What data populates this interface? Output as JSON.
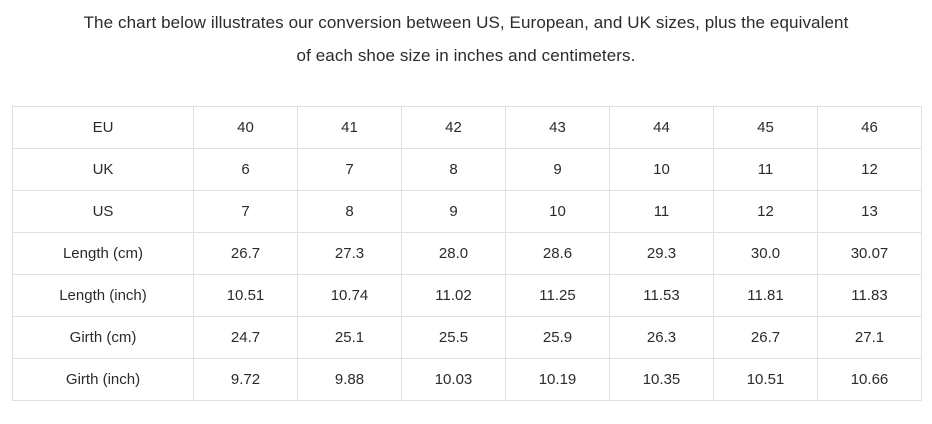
{
  "title": {
    "text": "The chart below illustrates our conversion between US, European, and UK sizes, plus the equivalent of each shoe size in inches and centimeters.",
    "line1": "The chart below illustrates our conversion between US, European, and UK sizes, plus the equivalent",
    "line2": "of each shoe size in inches and centimeters."
  },
  "chart_data": {
    "type": "table",
    "description": "Shoe size conversion chart",
    "rows": [
      {
        "label": "EU",
        "values": [
          "40",
          "41",
          "42",
          "43",
          "44",
          "45",
          "46"
        ]
      },
      {
        "label": "UK",
        "values": [
          "6",
          "7",
          "8",
          "9",
          "10",
          "11",
          "12"
        ]
      },
      {
        "label": "US",
        "values": [
          "7",
          "8",
          "9",
          "10",
          "11",
          "12",
          "13"
        ]
      },
      {
        "label": "Length (cm)",
        "values": [
          "26.7",
          "27.3",
          "28.0",
          "28.6",
          "29.3",
          "30.0",
          "30.07"
        ]
      },
      {
        "label": "Length (inch)",
        "values": [
          "10.51",
          "10.74",
          "11.02",
          "11.25",
          "11.53",
          "11.81",
          "11.83"
        ]
      },
      {
        "label": "Girth (cm)",
        "values": [
          "24.7",
          "25.1",
          "25.5",
          "25.9",
          "26.3",
          "26.7",
          "27.1"
        ]
      },
      {
        "label": "Girth (inch)",
        "values": [
          "9.72",
          "9.88",
          "10.03",
          "10.19",
          "10.35",
          "10.51",
          "10.66"
        ]
      }
    ]
  },
  "colors": {
    "text": "#2b2b2b",
    "border": "#e0e0e0",
    "background": "#ffffff"
  }
}
